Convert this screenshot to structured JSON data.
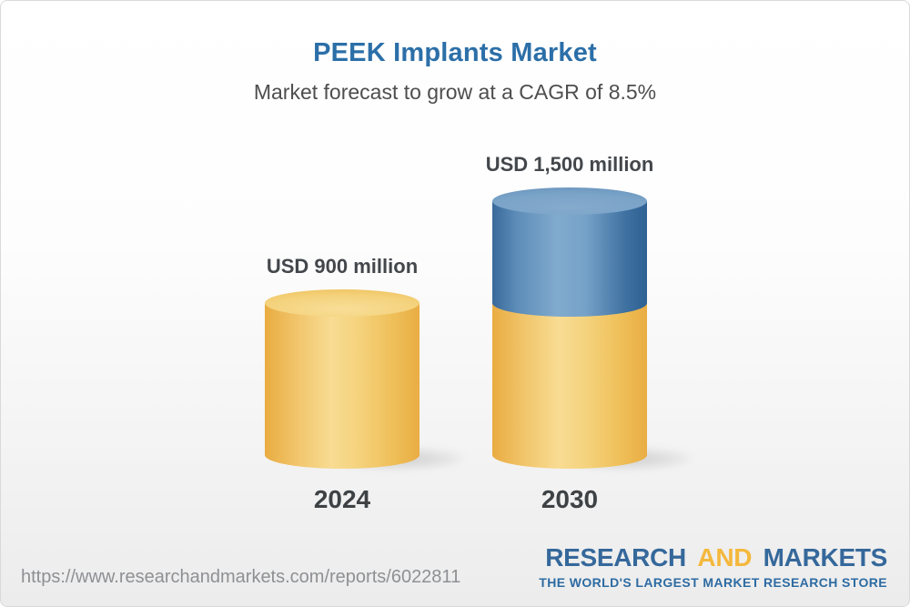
{
  "header": {
    "title": "PEEK Implants Market",
    "subtitle": "Market forecast to grow at a CAGR of 8.5%"
  },
  "chart_data": {
    "type": "bar",
    "style": "3d-cylinder",
    "title": "PEEK Implants Market",
    "subtitle": "Market forecast to grow at a CAGR of 8.5%",
    "cagr": "8.5%",
    "unit": "USD million",
    "categories": [
      "2024",
      "2030"
    ],
    "values": [
      900,
      1500
    ],
    "value_labels": [
      "USD 900 million",
      "USD 1,500 million"
    ],
    "bars": [
      {
        "category": "2024",
        "label": "USD 900 million",
        "total": 900,
        "segments": [
          {
            "name": "base",
            "value": 900,
            "color": "#f3cf79"
          }
        ]
      },
      {
        "category": "2030",
        "label": "USD 1,500 million",
        "total": 1500,
        "segments": [
          {
            "name": "base",
            "value": 900,
            "color": "#f3cf79"
          },
          {
            "name": "growth",
            "value": 600,
            "color": "#5f8fba"
          }
        ]
      }
    ],
    "colors": {
      "base": "#f3cf79",
      "growth": "#5f8fba",
      "title": "#2b6fa8"
    },
    "legend": "none",
    "grid": "off",
    "ylim": [
      0,
      1500
    ]
  },
  "footer": {
    "url": "https://www.researchandmarkets.com/reports/6022811",
    "brand": {
      "word1": "RESEARCH",
      "word2": "AND",
      "word3": "MARKETS",
      "tagline": "THE WORLD'S LARGEST MARKET RESEARCH STORE"
    }
  }
}
